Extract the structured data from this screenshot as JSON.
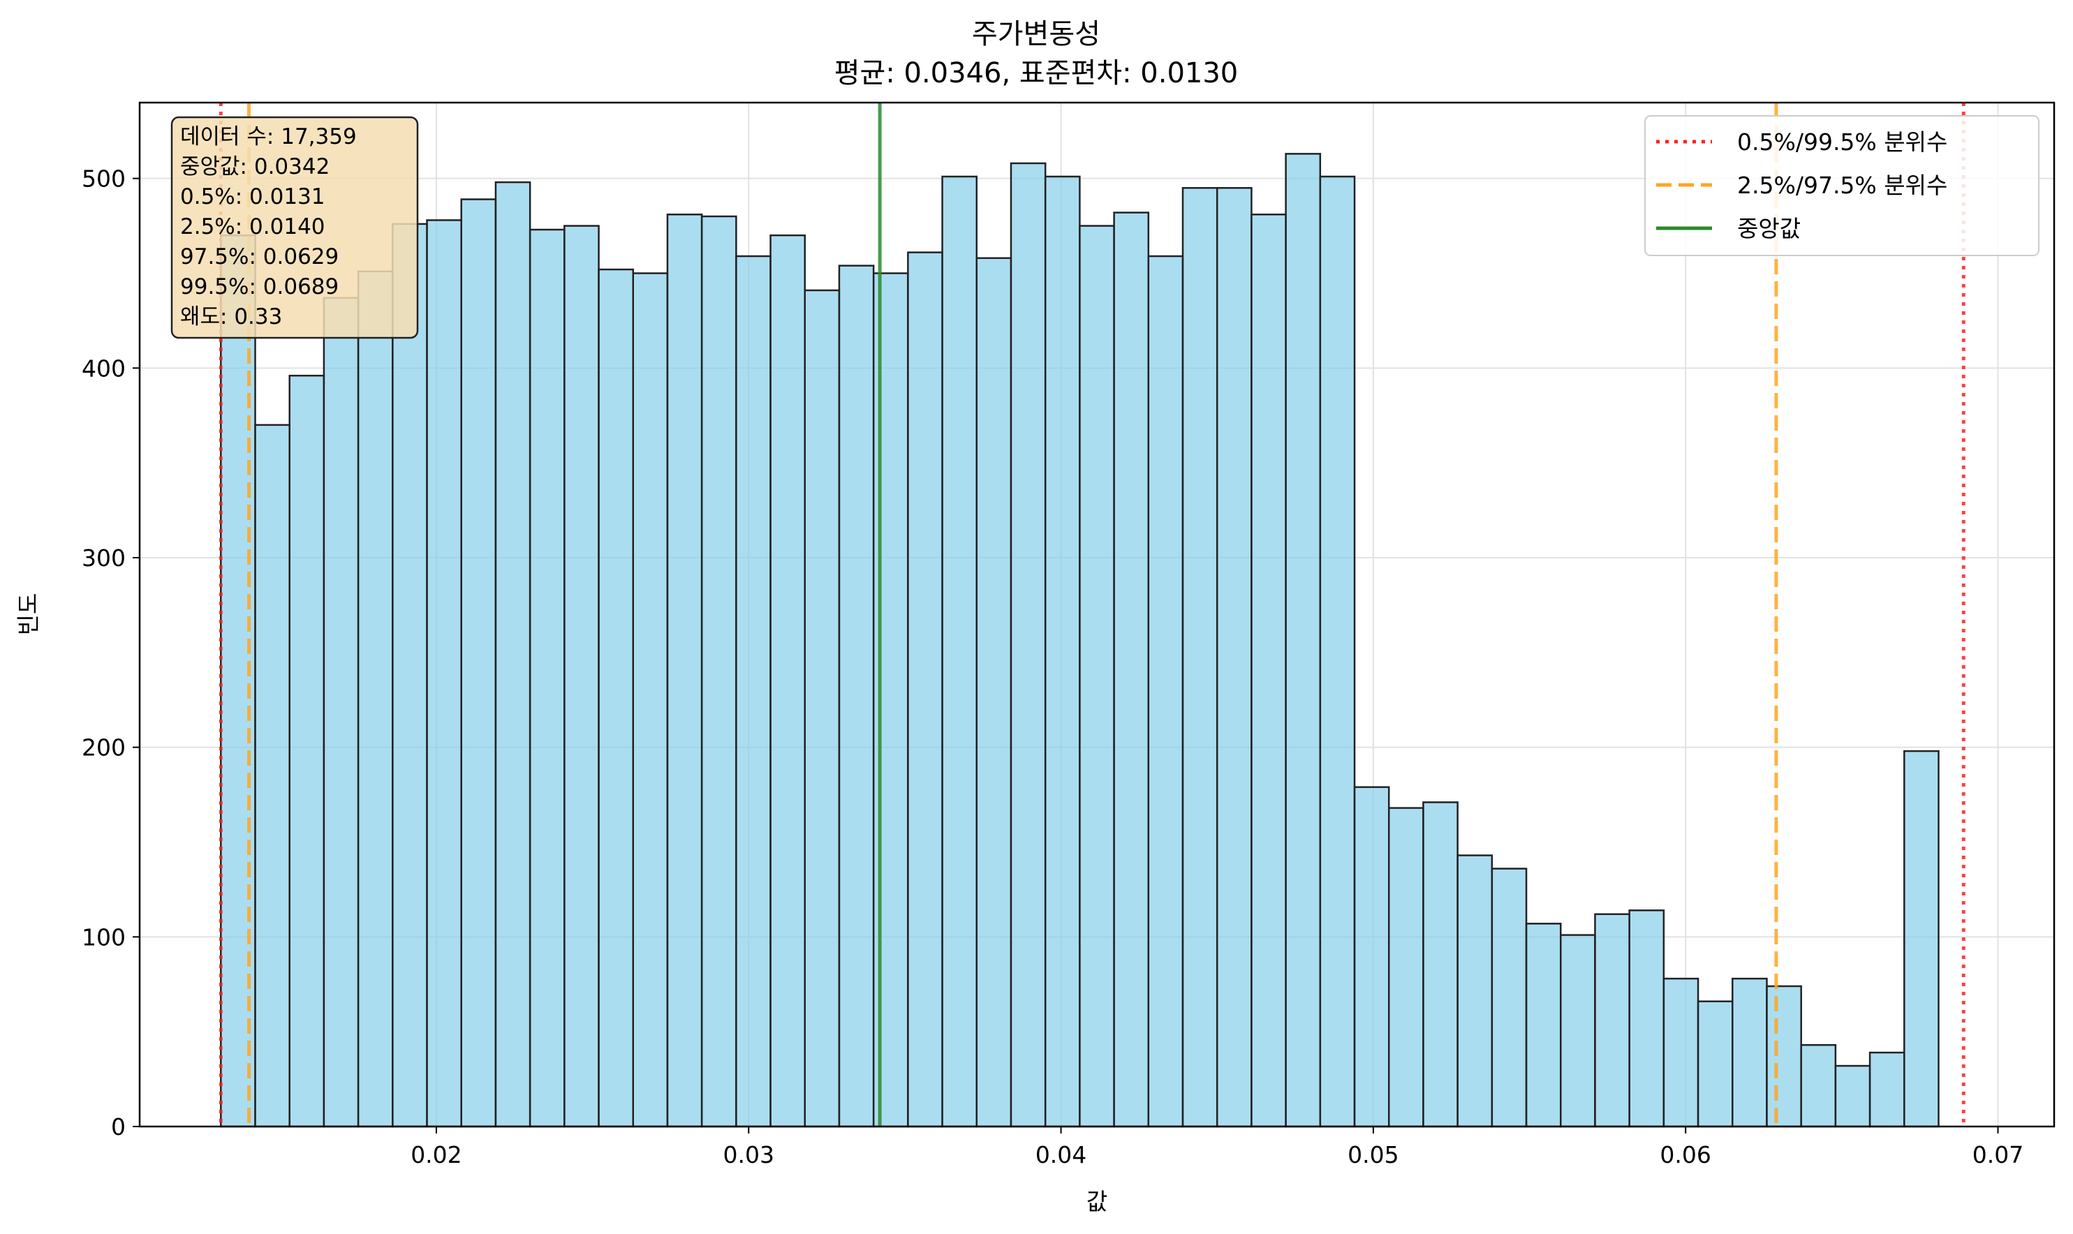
{
  "chart_data": {
    "type": "bar",
    "chart_kind": "histogram",
    "title": "주가변동성",
    "subtitle": "평균: 0.0346, 표준편차: 0.0130",
    "xlabel": "값",
    "ylabel": "빈도",
    "xlim": [
      0.0105,
      0.0718
    ],
    "ylim": [
      0,
      540
    ],
    "xticks": [
      "0.02",
      "0.03",
      "0.04",
      "0.05",
      "0.06",
      "0.07"
    ],
    "yticks": [
      "0",
      "100",
      "200",
      "300",
      "400",
      "500"
    ],
    "grid": true,
    "bin_start": 0.0131,
    "bin_width": 0.0011,
    "counts": [
      470,
      370,
      396,
      437,
      451,
      476,
      478,
      489,
      498,
      473,
      475,
      452,
      450,
      481,
      480,
      459,
      470,
      441,
      454,
      450,
      461,
      501,
      458,
      508,
      501,
      475,
      482,
      459,
      495,
      495,
      481,
      513,
      501,
      179,
      168,
      171,
      143,
      136,
      107,
      101,
      112,
      114,
      78,
      66,
      78,
      74,
      43,
      32,
      39,
      198
    ],
    "bar_color": "#87ceeb",
    "edge_color": "#222222",
    "reference_lines": [
      {
        "name": "0.5%/99.5% 분위수",
        "values": [
          0.0131,
          0.0689
        ],
        "color": "#ff2020",
        "style": "dotted"
      },
      {
        "name": "2.5%/97.5% 분위수",
        "values": [
          0.014,
          0.0629
        ],
        "color": "#ffa520",
        "style": "dashed"
      },
      {
        "name": "중앙값",
        "values": [
          0.0342
        ],
        "color": "#2a8a2a",
        "style": "solid"
      }
    ],
    "legend": {
      "placement": "top-right",
      "items": [
        "0.5%/99.5% 분위수",
        "2.5%/97.5% 분위수",
        "중앙값"
      ]
    },
    "stats_box": {
      "placement": "top-left",
      "lines": [
        "데이터 수: 17,359",
        "중앙값: 0.0342",
        "0.5%: 0.0131",
        "2.5%: 0.0140",
        "97.5%: 0.0629",
        "99.5%: 0.0689",
        "왜도: 0.33"
      ],
      "background": "#f5deb3"
    }
  }
}
